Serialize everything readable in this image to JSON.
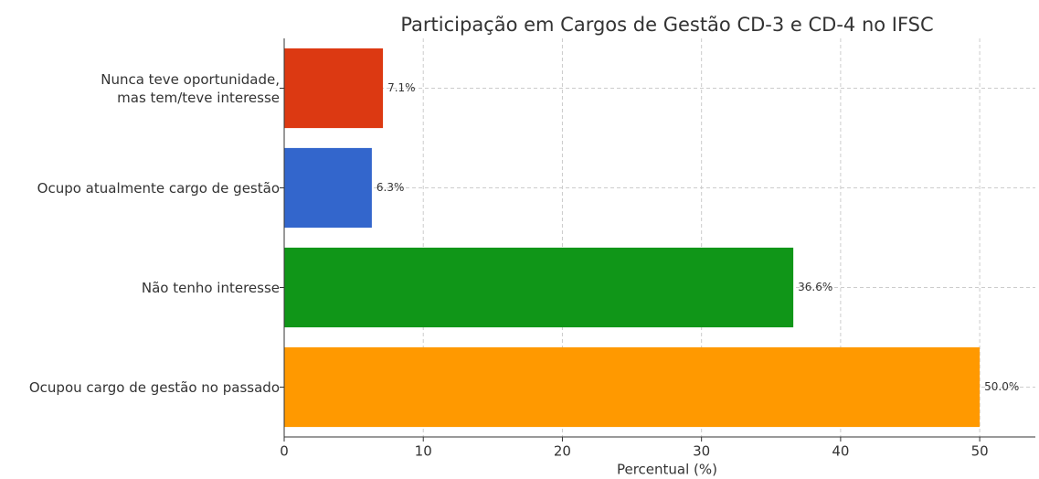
{
  "chart_data": {
    "type": "barh",
    "title": "Participação em Cargos de Gestão CD-3 e CD-4 no IFSC",
    "xlabel": "Percentual (%)",
    "categories": [
      "Ocupou cargo de gestão no passado",
      "Não tenho interesse",
      "Ocupo atualmente cargo de gestão",
      "Nunca teve oportunidade,\nmas tem/teve interesse"
    ],
    "values": [
      50.0,
      36.6,
      6.3,
      7.1
    ],
    "value_labels": [
      "50.0%",
      "36.6%",
      "6.3%",
      "7.1%"
    ],
    "colors": [
      "#ff9900",
      "#109618",
      "#3366cc",
      "#dc3912"
    ],
    "xlim": [
      0,
      54
    ],
    "xticks": [
      0,
      10,
      20,
      30,
      40,
      50
    ],
    "grid": true
  }
}
